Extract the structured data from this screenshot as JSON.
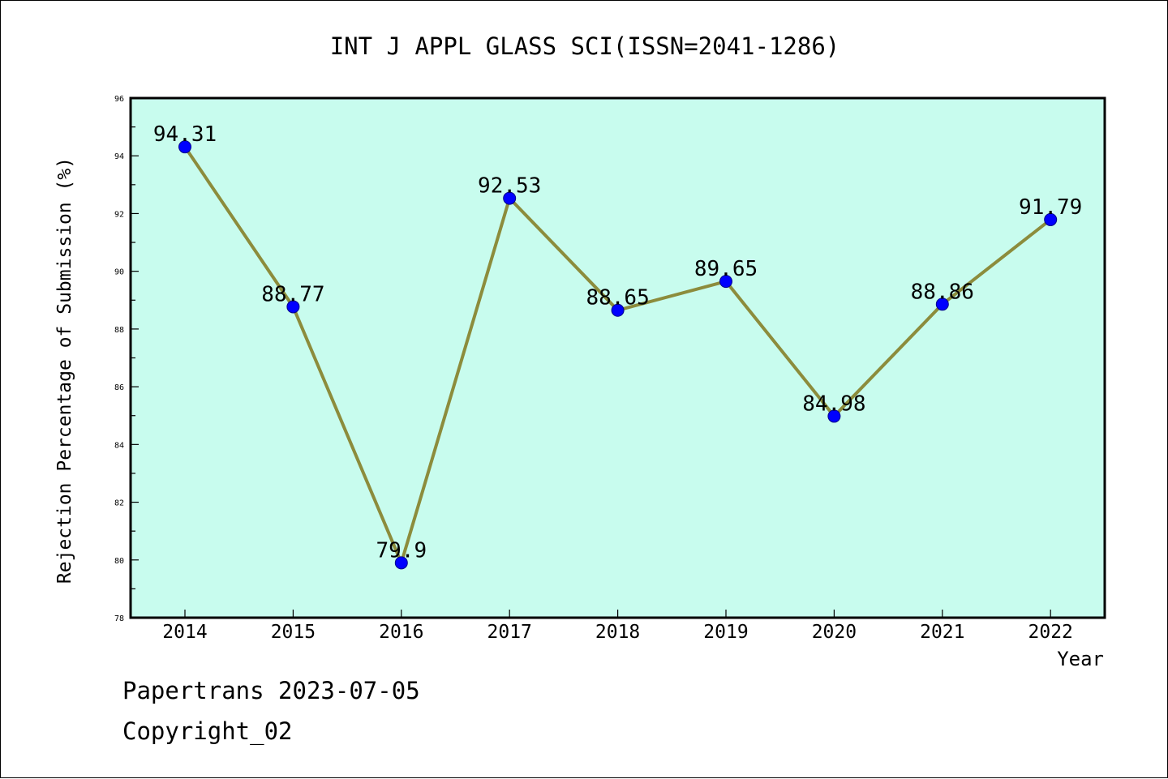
{
  "chart_data": {
    "type": "line",
    "title": "INT J APPL GLASS SCI(ISSN=2041-1286)",
    "xlabel": "Year",
    "ylabel": "Rejection Percentage of Submission (%)",
    "categories": [
      "2014",
      "2015",
      "2016",
      "2017",
      "2018",
      "2019",
      "2020",
      "2021",
      "2022"
    ],
    "values": [
      94.31,
      88.77,
      79.9,
      92.53,
      88.65,
      89.65,
      84.98,
      88.86,
      91.79
    ],
    "data_labels": [
      "94.31",
      "88.77",
      "79.9",
      "92.53",
      "88.65",
      "89.65",
      "84.98",
      "88.86",
      "91.79"
    ],
    "ylim": [
      78,
      96
    ],
    "yticks": [
      "78",
      "80",
      "82",
      "84",
      "86",
      "88",
      "90",
      "92",
      "94",
      "96"
    ],
    "grid": false,
    "colors": {
      "plot_background": "#c8fcee",
      "line": "#8c8c3c",
      "marker": "#0000ff"
    }
  },
  "footer": {
    "line1": "Papertrans 2023-07-05",
    "line2": "Copyright_02"
  }
}
